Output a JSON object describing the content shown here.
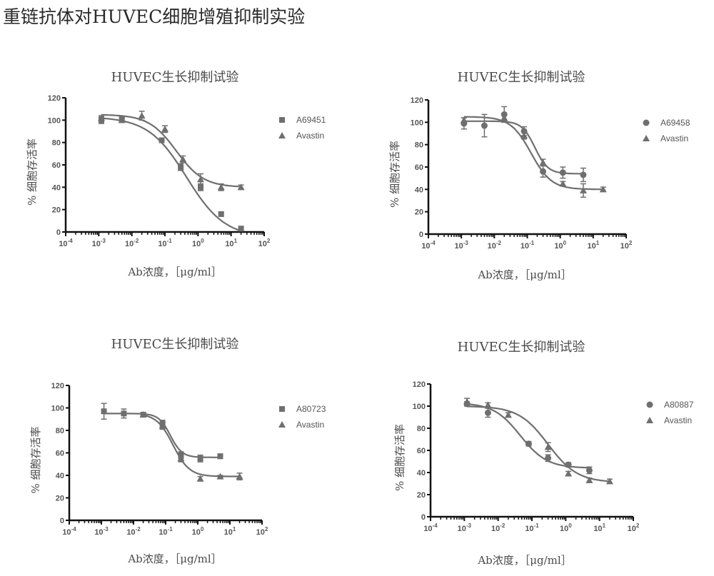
{
  "page_title": "重链抗体对HUVEC细胞增殖抑制实验",
  "colors": {
    "series": "#6f6f6f",
    "axis": "#111111",
    "text": "#4a4a4a"
  },
  "chart_data": [
    {
      "type": "scatter",
      "title": "HUVEC生长抑制试验",
      "xlabel": "Ab浓度，［μg/ml］",
      "ylabel": "% 细胞存活率",
      "xscale": "log",
      "xlim": [
        0.0001,
        100
      ],
      "ylim": [
        0,
        120
      ],
      "yticks": [
        "0",
        "20",
        "40",
        "60",
        "80",
        "100",
        "120"
      ],
      "xticks": [
        "10-4",
        "10-3",
        "10-2",
        "10-1",
        "100",
        "101",
        "102"
      ],
      "legend_position": "right",
      "series": [
        {
          "name": "A69451",
          "marker": "square",
          "x": [
            0.0012,
            0.005,
            0.08,
            0.3,
            1.2,
            5,
            20
          ],
          "y": [
            100,
            101,
            82,
            58,
            40,
            16,
            3
          ],
          "err": [
            3,
            2,
            2,
            3,
            3,
            2,
            2
          ],
          "fit": {
            "top": 103,
            "bottom": -5,
            "ec50": 0.45,
            "hill": 0.75
          }
        },
        {
          "name": "Avastin",
          "marker": "triangle",
          "x": [
            0.0012,
            0.005,
            0.02,
            0.1,
            0.35,
            1.2,
            5,
            20
          ],
          "y": [
            102,
            100,
            104,
            92,
            65,
            47,
            40,
            40
          ],
          "err": [
            2,
            2,
            4,
            3,
            3,
            5,
            3,
            2
          ],
          "fit": {
            "top": 105,
            "bottom": 40,
            "ec50": 0.22,
            "hill": 1.05
          }
        }
      ]
    },
    {
      "type": "scatter",
      "title": "HUVEC生长抑制试验",
      "xlabel": "Ab浓度，［μg/ml］",
      "ylabel": "% 细胞存活率",
      "xscale": "log",
      "xlim": [
        0.0001,
        100
      ],
      "ylim": [
        0,
        120
      ],
      "yticks": [
        "0",
        "20",
        "40",
        "60",
        "80",
        "100",
        "120"
      ],
      "xticks": [
        "10-4",
        "10-3",
        "10-2",
        "10-1",
        "100",
        "101",
        "102"
      ],
      "legend_position": "right",
      "series": [
        {
          "name": "A69458",
          "marker": "circle",
          "x": [
            0.0012,
            0.005,
            0.02,
            0.08,
            0.3,
            1.2,
            5
          ],
          "y": [
            99,
            97,
            107,
            92,
            56,
            55,
            53
          ],
          "err": [
            5,
            10,
            7,
            4,
            5,
            5,
            6
          ],
          "fit": {
            "top": 101,
            "bottom": 54,
            "ec50": 0.17,
            "hill": 2.2
          }
        },
        {
          "name": "Avastin",
          "marker": "triangle",
          "x": [
            0.0012,
            0.02,
            0.08,
            0.3,
            1.2,
            5,
            20
          ],
          "y": [
            102,
            104,
            88,
            64,
            45,
            39,
            40
          ],
          "err": [
            2,
            3,
            3,
            3,
            2,
            6,
            2
          ],
          "fit": {
            "top": 105,
            "bottom": 40,
            "ec50": 0.13,
            "hill": 1.4
          }
        }
      ]
    },
    {
      "type": "scatter",
      "title": "HUVEC生长抑制试验",
      "xlabel": "Ab浓度，［μg/ml］",
      "ylabel": "% 细胞存活率",
      "xscale": "log",
      "xlim": [
        0.0001,
        100
      ],
      "ylim": [
        0,
        120
      ],
      "yticks": [
        "0",
        "20",
        "40",
        "60",
        "80",
        "100",
        "120"
      ],
      "xticks": [
        "10-4",
        "10-3",
        "10-2",
        "10-1",
        "100",
        "101",
        "102"
      ],
      "legend_position": "right",
      "series": [
        {
          "name": "A80723",
          "marker": "square",
          "x": [
            0.0012,
            0.005,
            0.02,
            0.08,
            0.3,
            1.2,
            5
          ],
          "y": [
            97,
            95,
            94,
            86,
            58,
            55,
            57
          ],
          "err": [
            7,
            4,
            2,
            3,
            3,
            3,
            2
          ],
          "fit": {
            "top": 95,
            "bottom": 56,
            "ec50": 0.14,
            "hill": 2.4
          }
        },
        {
          "name": "Avastin",
          "marker": "triangle",
          "x": [
            0.02,
            0.08,
            0.3,
            1.2,
            5,
            20
          ],
          "y": [
            94,
            84,
            55,
            37,
            39,
            39
          ],
          "err": [
            2,
            3,
            3,
            2,
            1,
            3
          ],
          "fit": {
            "top": 95,
            "bottom": 39,
            "ec50": 0.17,
            "hill": 1.7
          }
        }
      ]
    },
    {
      "type": "scatter",
      "title": "HUVEC生长抑制试验",
      "xlabel": "Ab浓度，［μg/ml］",
      "ylabel": "% 细胞存活率",
      "xscale": "log",
      "xlim": [
        0.0001,
        100
      ],
      "ylim": [
        0,
        120
      ],
      "yticks": [
        "0",
        "20",
        "40",
        "60",
        "80",
        "100",
        "120"
      ],
      "xticks": [
        "10-4",
        "10-3",
        "10-2",
        "10-1",
        "100",
        "101",
        "102"
      ],
      "legend_position": "right",
      "series": [
        {
          "name": "A80887",
          "marker": "circle",
          "x": [
            0.0012,
            0.005,
            0.08,
            0.3,
            1.2,
            5
          ],
          "y": [
            102,
            94,
            66,
            53,
            47,
            42
          ],
          "err": [
            2,
            4,
            2,
            3,
            2,
            3
          ],
          "fit": {
            "top": 103,
            "bottom": 44,
            "ec50": 0.045,
            "hill": 1.1
          }
        },
        {
          "name": "Avastin",
          "marker": "triangle",
          "x": [
            0.0012,
            0.005,
            0.02,
            0.3,
            1.2,
            5,
            20
          ],
          "y": [
            104,
            101,
            92,
            63,
            39,
            33,
            32
          ],
          "err": [
            3,
            2,
            2,
            4,
            2,
            2,
            2
          ],
          "fit": {
            "top": 100,
            "bottom": 31,
            "ec50": 0.3,
            "hill": 1.0
          }
        }
      ]
    }
  ]
}
